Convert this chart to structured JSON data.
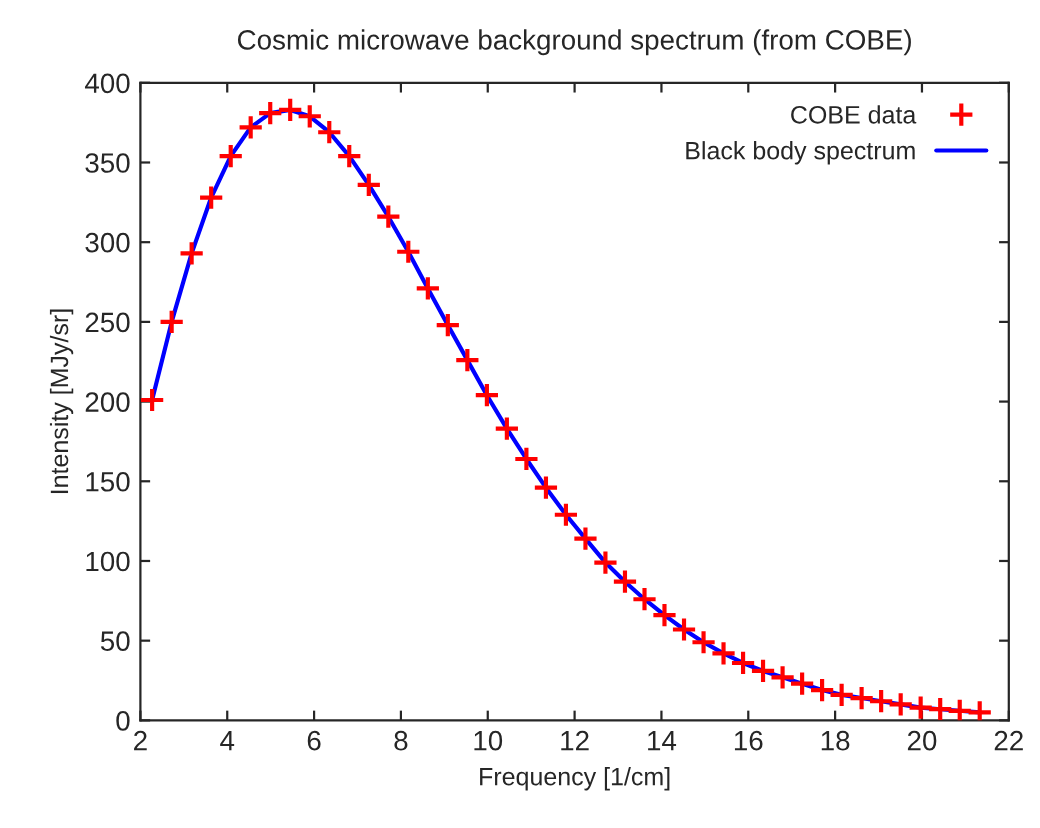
{
  "chart_data": {
    "type": "scatter",
    "title": "Cosmic microwave background spectrum (from COBE)",
    "xlabel": "Frequency [1/cm]",
    "ylabel": "Intensity [MJy/sr]",
    "xlim": [
      2,
      22
    ],
    "xticks": [
      2,
      4,
      6,
      8,
      10,
      12,
      14,
      16,
      18,
      20,
      22
    ],
    "ylim": [
      0,
      400
    ],
    "yticks": [
      0,
      50,
      100,
      150,
      200,
      250,
      300,
      350,
      400
    ],
    "grid": false,
    "legend": "top right",
    "x": [
      2.27,
      2.72,
      3.18,
      3.63,
      4.08,
      4.54,
      4.99,
      5.45,
      5.9,
      6.35,
      6.81,
      7.26,
      7.71,
      8.17,
      8.62,
      9.08,
      9.53,
      9.98,
      10.44,
      10.89,
      11.34,
      11.8,
      12.25,
      12.71,
      13.16,
      13.61,
      14.07,
      14.52,
      14.97,
      15.43,
      15.88,
      16.34,
      16.79,
      17.24,
      17.7,
      18.15,
      18.61,
      19.06,
      19.51,
      19.97,
      20.42,
      20.87,
      21.33
    ],
    "series": [
      {
        "name": "COBE data",
        "marker": "cross",
        "color": "#ff0000",
        "values": [
          201,
          250,
          293,
          328,
          354,
          372,
          381,
          383,
          379,
          369,
          354,
          336,
          316,
          294,
          271,
          248,
          226,
          204,
          183,
          164,
          146,
          129,
          114,
          99,
          87,
          76,
          66,
          57,
          49,
          42,
          36,
          31,
          27,
          23,
          19,
          16,
          14,
          12,
          10,
          8,
          7,
          6,
          5
        ]
      },
      {
        "name": "Black body spectrum",
        "type": "line",
        "line_style": "solid",
        "color": "#0000ff",
        "values": [
          201,
          250,
          293,
          328,
          354,
          372,
          381,
          383,
          379,
          369,
          354,
          336,
          316,
          294,
          271,
          248,
          226,
          204,
          183,
          164,
          146,
          129,
          114,
          99,
          87,
          76,
          66,
          57,
          49,
          42,
          36,
          31,
          27,
          23,
          19,
          16,
          14,
          12,
          10,
          8,
          7,
          6,
          5
        ]
      }
    ]
  }
}
